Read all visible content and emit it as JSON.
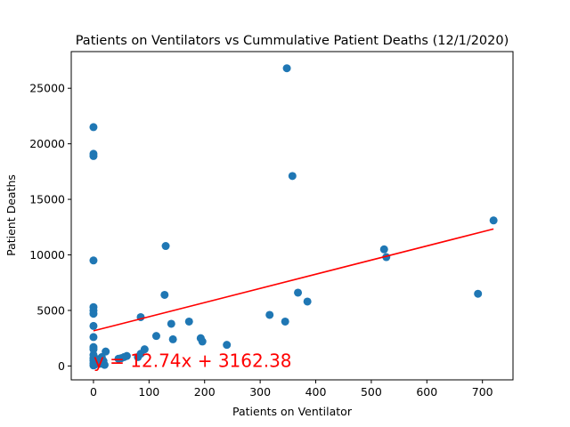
{
  "chart_data": {
    "type": "scatter",
    "title": "Patients on Ventilators vs Cummulative Patient Deaths (12/1/2020)",
    "xlabel": "Patients on Ventilator",
    "ylabel": "Patient Deaths",
    "xlim": [
      -40,
      755
    ],
    "ylim": [
      -1250,
      28300
    ],
    "xticks": [
      0,
      100,
      200,
      300,
      400,
      500,
      600,
      700
    ],
    "yticks": [
      0,
      5000,
      10000,
      15000,
      20000,
      25000
    ],
    "grid": false,
    "marker_color": "#1f77b4",
    "points": [
      [
        0,
        21500
      ],
      [
        0,
        19100
      ],
      [
        0,
        18900
      ],
      [
        0,
        9500
      ],
      [
        0,
        5300
      ],
      [
        0,
        5000
      ],
      [
        0,
        4700
      ],
      [
        0,
        3600
      ],
      [
        0,
        2600
      ],
      [
        0,
        1700
      ],
      [
        0,
        1500
      ],
      [
        0,
        1000
      ],
      [
        0,
        700
      ],
      [
        0,
        500
      ],
      [
        0,
        250
      ],
      [
        0,
        50
      ],
      [
        2,
        100
      ],
      [
        5,
        300
      ],
      [
        8,
        600
      ],
      [
        12,
        200
      ],
      [
        15,
        800
      ],
      [
        18,
        450
      ],
      [
        20,
        100
      ],
      [
        22,
        1300
      ],
      [
        45,
        650
      ],
      [
        50,
        700
      ],
      [
        55,
        800
      ],
      [
        60,
        900
      ],
      [
        80,
        800
      ],
      [
        85,
        1100
      ],
      [
        85,
        4400
      ],
      [
        92,
        1500
      ],
      [
        113,
        2700
      ],
      [
        128,
        6400
      ],
      [
        130,
        10800
      ],
      [
        140,
        3800
      ],
      [
        143,
        2400
      ],
      [
        172,
        4000
      ],
      [
        193,
        2500
      ],
      [
        196,
        2200
      ],
      [
        240,
        1900
      ],
      [
        317,
        4600
      ],
      [
        345,
        4000
      ],
      [
        348,
        26800
      ],
      [
        358,
        17100
      ],
      [
        368,
        6600
      ],
      [
        385,
        5800
      ],
      [
        523,
        10500
      ],
      [
        527,
        9800
      ],
      [
        692,
        6500
      ],
      [
        720,
        13100
      ]
    ],
    "regression": {
      "slope": 12.74,
      "intercept": 3162.38,
      "x_range": [
        0,
        720
      ],
      "color": "#ff0000",
      "label": "y = 12.74x + 3162.38",
      "label_at": [
        0,
        0
      ]
    }
  }
}
